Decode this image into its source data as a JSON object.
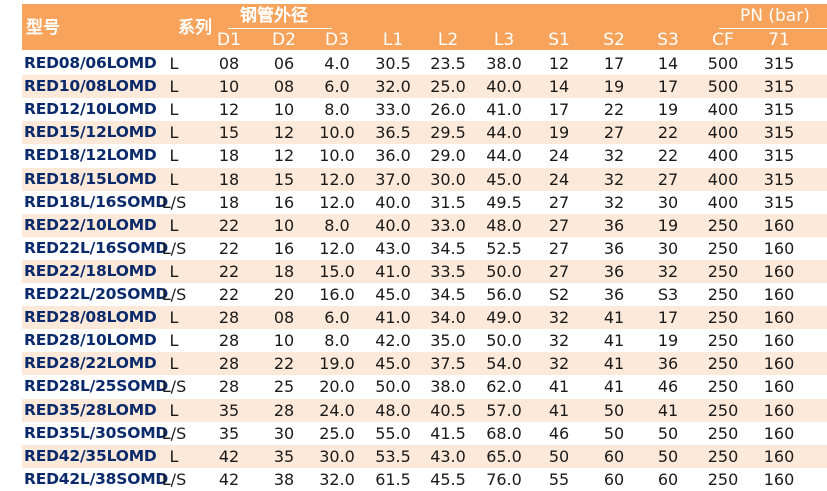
{
  "header": {
    "model": "型号",
    "series": "系列",
    "pipe_od": "钢管外径",
    "pn": "PN (bar)",
    "columns": [
      "D1",
      "D2",
      "D3",
      "L1",
      "L2",
      "L3",
      "S1",
      "S2",
      "S3",
      "CF",
      "71"
    ]
  },
  "rows": [
    {
      "model": "RED08/06LOMD",
      "series": "L",
      "d1": "08",
      "d2": "06",
      "d3": "4.0",
      "l1": "30.5",
      "l2": "23.5",
      "l3": "38.0",
      "s1": "12",
      "s2": "17",
      "s3": "14",
      "cf": "500",
      "p71": "315"
    },
    {
      "model": "RED10/08LOMD",
      "series": "L",
      "d1": "10",
      "d2": "08",
      "d3": "6.0",
      "l1": "32.0",
      "l2": "25.0",
      "l3": "40.0",
      "s1": "14",
      "s2": "19",
      "s3": "17",
      "cf": "500",
      "p71": "315"
    },
    {
      "model": "RED12/10LOMD",
      "series": "L",
      "d1": "12",
      "d2": "10",
      "d3": "8.0",
      "l1": "33.0",
      "l2": "26.0",
      "l3": "41.0",
      "s1": "17",
      "s2": "22",
      "s3": "19",
      "cf": "400",
      "p71": "315"
    },
    {
      "model": "RED15/12LOMD",
      "series": "L",
      "d1": "15",
      "d2": "12",
      "d3": "10.0",
      "l1": "36.5",
      "l2": "29.5",
      "l3": "44.0",
      "s1": "19",
      "s2": "27",
      "s3": "22",
      "cf": "400",
      "p71": "315"
    },
    {
      "model": "RED18/12LOMD",
      "series": "L",
      "d1": "18",
      "d2": "12",
      "d3": "10.0",
      "l1": "36.0",
      "l2": "29.0",
      "l3": "44.0",
      "s1": "24",
      "s2": "32",
      "s3": "22",
      "cf": "400",
      "p71": "315"
    },
    {
      "model": "RED18/15LOMD",
      "series": "L",
      "d1": "18",
      "d2": "15",
      "d3": "12.0",
      "l1": "37.0",
      "l2": "30.0",
      "l3": "45.0",
      "s1": "24",
      "s2": "32",
      "s3": "27",
      "cf": "400",
      "p71": "315"
    },
    {
      "model": "RED18L/16SOMD",
      "series": "L/S",
      "d1": "18",
      "d2": "16",
      "d3": "12.0",
      "l1": "40.0",
      "l2": "31.5",
      "l3": "49.5",
      "s1": "27",
      "s2": "32",
      "s3": "30",
      "cf": "400",
      "p71": "315"
    },
    {
      "model": "RED22/10LOMD",
      "series": "L",
      "d1": "22",
      "d2": "10",
      "d3": "8.0",
      "l1": "40.0",
      "l2": "33.0",
      "l3": "48.0",
      "s1": "27",
      "s2": "36",
      "s3": "19",
      "cf": "250",
      "p71": "160"
    },
    {
      "model": "RED22L/16SOMD",
      "series": "L/S",
      "d1": "22",
      "d2": "16",
      "d3": "12.0",
      "l1": "43.0",
      "l2": "34.5",
      "l3": "52.5",
      "s1": "27",
      "s2": "36",
      "s3": "30",
      "cf": "250",
      "p71": "160"
    },
    {
      "model": "RED22/18LOMD",
      "series": "L",
      "d1": "22",
      "d2": "18",
      "d3": "15.0",
      "l1": "41.0",
      "l2": "33.5",
      "l3": "50.0",
      "s1": "27",
      "s2": "36",
      "s3": "32",
      "cf": "250",
      "p71": "160"
    },
    {
      "model": "RED22L/20SOMD",
      "series": "L/S",
      "d1": "22",
      "d2": "20",
      "d3": "16.0",
      "l1": "45.0",
      "l2": "34.5",
      "l3": "56.0",
      "s1": "S2",
      "s2": "36",
      "s3": "S3",
      "cf": "250",
      "p71": "160"
    },
    {
      "model": "RED28/08LOMD",
      "series": "L",
      "d1": "28",
      "d2": "08",
      "d3": "6.0",
      "l1": "41.0",
      "l2": "34.0",
      "l3": "49.0",
      "s1": "32",
      "s2": "41",
      "s3": "17",
      "cf": "250",
      "p71": "160"
    },
    {
      "model": "RED28/10LOMD",
      "series": "L",
      "d1": "28",
      "d2": "10",
      "d3": "8.0",
      "l1": "42.0",
      "l2": "35.0",
      "l3": "50.0",
      "s1": "32",
      "s2": "41",
      "s3": "19",
      "cf": "250",
      "p71": "160"
    },
    {
      "model": "RED28/22LOMD",
      "series": "L",
      "d1": "28",
      "d2": "22",
      "d3": "19.0",
      "l1": "45.0",
      "l2": "37.5",
      "l3": "54.0",
      "s1": "32",
      "s2": "41",
      "s3": "36",
      "cf": "250",
      "p71": "160"
    },
    {
      "model": "RED28L/25SOMD",
      "series": "L/S",
      "d1": "28",
      "d2": "25",
      "d3": "20.0",
      "l1": "50.0",
      "l2": "38.0",
      "l3": "62.0",
      "s1": "41",
      "s2": "41",
      "s3": "46",
      "cf": "250",
      "p71": "160"
    },
    {
      "model": "RED35/28LOMD",
      "series": "L",
      "d1": "35",
      "d2": "28",
      "d3": "24.0",
      "l1": "48.0",
      "l2": "40.5",
      "l3": "57.0",
      "s1": "41",
      "s2": "50",
      "s3": "41",
      "cf": "250",
      "p71": "160"
    },
    {
      "model": "RED35L/30SOMD",
      "series": "L/S",
      "d1": "35",
      "d2": "30",
      "d3": "25.0",
      "l1": "55.0",
      "l2": "41.5",
      "l3": "68.0",
      "s1": "46",
      "s2": "50",
      "s3": "50",
      "cf": "250",
      "p71": "160"
    },
    {
      "model": "RED42/35LOMD",
      "series": "L",
      "d1": "42",
      "d2": "35",
      "d3": "30.0",
      "l1": "53.5",
      "l2": "43.0",
      "l3": "65.0",
      "s1": "50",
      "s2": "60",
      "s3": "50",
      "cf": "250",
      "p71": "160"
    },
    {
      "model": "RED42L/38SOMD",
      "series": "L/S",
      "d1": "42",
      "d2": "38",
      "d3": "32.0",
      "l1": "61.5",
      "l2": "45.5",
      "l3": "76.0",
      "s1": "55",
      "s2": "60",
      "s3": "60",
      "cf": "250",
      "p71": "160"
    }
  ]
}
